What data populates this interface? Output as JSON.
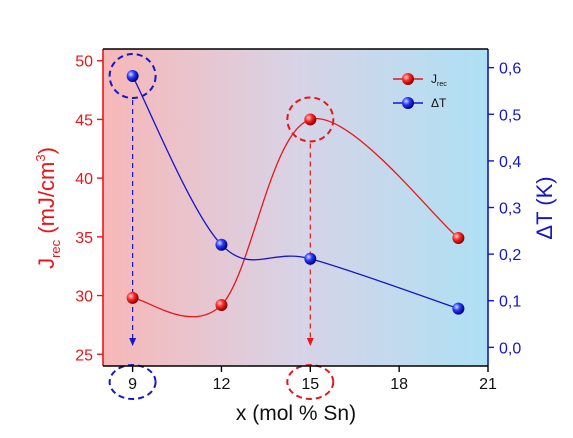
{
  "chart_data": {
    "type": "line",
    "xlabel": "x (mol % Sn)",
    "ylabel_left": "J",
    "ylabel_left_sub": "rec",
    "ylabel_left_unit": "(mJ/cm",
    "ylabel_left_sup": "3",
    "ylabel_left_close": ")",
    "ylabel_right": "ΔT (K)",
    "xlim": [
      8,
      21
    ],
    "ylim_left": [
      24,
      51
    ],
    "ylim_right": [
      -0.04,
      0.64
    ],
    "xticks": [
      9,
      12,
      15,
      18,
      21
    ],
    "yticks_left": [
      25,
      30,
      35,
      40,
      45,
      50
    ],
    "yticks_right": [
      "0,0",
      "0,1",
      "0,2",
      "0,3",
      "0,4",
      "0,5",
      "0,6"
    ],
    "yticks_right_values": [
      0.0,
      0.1,
      0.2,
      0.3,
      0.4,
      0.5,
      0.6
    ],
    "series": [
      {
        "name": "J",
        "name_sub": "rec",
        "axis": "left",
        "color": "#e8161b",
        "x": [
          9,
          12,
          15,
          20
        ],
        "values": [
          29.8,
          29.2,
          45.0,
          34.9
        ]
      },
      {
        "name": "ΔT",
        "axis": "right",
        "color": "#1616c8",
        "x": [
          9,
          12,
          15,
          20
        ],
        "values": [
          0.582,
          0.22,
          0.19,
          0.083
        ]
      }
    ],
    "legend_position": "top-right",
    "background_gradient": [
      "#f7b7b7",
      "#d8d3e6",
      "#aee0f4"
    ],
    "highlight_points": [
      {
        "series": "ΔT",
        "x": 9
      },
      {
        "series": "J",
        "x": 15
      }
    ],
    "highlight_ticks": [
      9,
      15
    ],
    "grid": false
  }
}
